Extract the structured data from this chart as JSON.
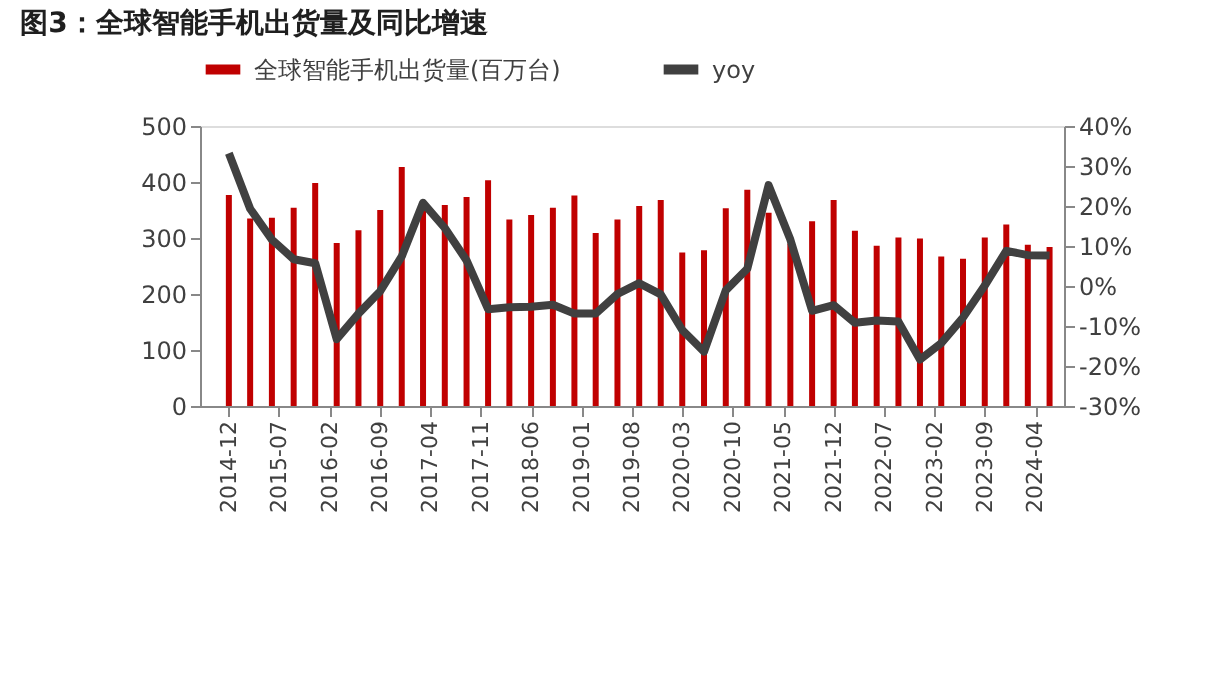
{
  "chart_data": {
    "type": "bar",
    "title": "图3：全球智能手机出货量及同比增速",
    "x": [
      "2014-12",
      "2015-03",
      "2015-06",
      "2015-09",
      "2015-12",
      "2016-03",
      "2016-06",
      "2016-09",
      "2016-12",
      "2017-03",
      "2017-06",
      "2017-09",
      "2017-12",
      "2018-03",
      "2018-06",
      "2018-09",
      "2018-12",
      "2019-03",
      "2019-06",
      "2019-09",
      "2019-12",
      "2020-03",
      "2020-06",
      "2020-09",
      "2020-12",
      "2021-03",
      "2021-06",
      "2021-09",
      "2021-12",
      "2022-03",
      "2022-06",
      "2022-09",
      "2022-12",
      "2023-03",
      "2023-06",
      "2023-09",
      "2023-12",
      "2024-03",
      "2024-06"
    ],
    "series": [
      {
        "name": "全球智能手机出货量(百万台)",
        "color": "#c00000",
        "values": [
          377,
          335,
          336,
          354,
          398,
          291,
          314,
          350,
          427,
          358,
          359,
          373,
          403,
          333,
          341,
          354,
          376,
          309,
          333,
          357,
          368,
          274,
          278,
          353,
          386,
          345,
          290,
          330,
          368,
          313,
          286,
          301,
          299,
          267,
          263,
          301,
          324,
          288,
          284
        ]
      },
      {
        "name": "yoy",
        "type": "line",
        "axis": "y2",
        "color": "#404040",
        "values": [
          33.2,
          19.3,
          11.6,
          6.7,
          5.7,
          -13.3,
          -6.9,
          -1.3,
          7.4,
          20.8,
          14.5,
          6.4,
          -5.8,
          -5.3,
          -5.2,
          -4.7,
          -6.9,
          -6.9,
          -2.0,
          0.7,
          -2.1,
          -11.0,
          -16.4,
          -1.1,
          4.3,
          25.2,
          11.6,
          -6.2,
          -4.8,
          -9.2,
          -8.6,
          -8.9,
          -18.4,
          -14.3,
          -7.9,
          0.1,
          8.8,
          7.7,
          7.6
        ]
      }
    ],
    "xlim": [
      "2014-08",
      "2024-08"
    ],
    "xticks": [
      "2014-12",
      "2015-07",
      "2016-02",
      "2016-09",
      "2017-04",
      "2017-11",
      "2018-06",
      "2019-01",
      "2019-08",
      "2020-03",
      "2020-10",
      "2021-05",
      "2021-12",
      "2022-07",
      "2023-02",
      "2023-09",
      "2024-04"
    ],
    "ylim": [
      0,
      500
    ],
    "yticks": [
      0,
      100,
      200,
      300,
      400,
      500
    ],
    "y2lim": [
      -30,
      40
    ],
    "y2ticks": [
      {
        "value": -30,
        "label": "-30%"
      },
      {
        "value": -20,
        "label": "-20%"
      },
      {
        "value": -10,
        "label": "-10%"
      },
      {
        "value": 0,
        "label": "0%"
      },
      {
        "value": 10,
        "label": "10%"
      },
      {
        "value": 20,
        "label": "20%"
      },
      {
        "value": 30,
        "label": "30%"
      },
      {
        "value": 40,
        "label": "40%"
      }
    ],
    "legend": "top",
    "grid": false
  }
}
